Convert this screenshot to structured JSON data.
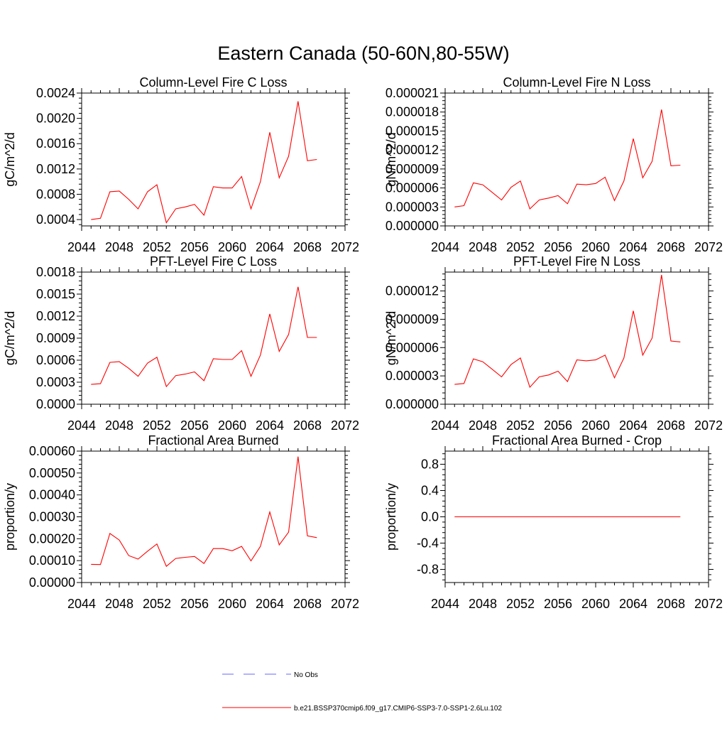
{
  "figure": {
    "title": "Eastern Canada (50-60N,80-55W)"
  },
  "legend": {
    "entries": [
      {
        "label": "No Obs",
        "color": "#6666ff",
        "style": "dashed"
      },
      {
        "label": "b.e21.BSSP370cmip6.f09_g17.CMIP6-SSP3-7.0-SSP1-2.6Lu.102",
        "color": "#ff0000",
        "style": "solid"
      }
    ]
  },
  "chart_data": [
    {
      "type": "line",
      "title": "Column-Level Fire C Loss",
      "xlabel": "",
      "ylabel": "gC/m^2/d",
      "xlim": [
        2044,
        2072
      ],
      "ylim": [
        0.0003,
        0.0024
      ],
      "xticks": [
        "2044",
        "2048",
        "2052",
        "2056",
        "2060",
        "2064",
        "2068",
        "2072"
      ],
      "xtick_values": [
        2044,
        2048,
        2052,
        2056,
        2060,
        2064,
        2068,
        2072
      ],
      "yticks": [
        "0.0004",
        "0.0008",
        "0.0012",
        "0.0016",
        "0.0020",
        "0.0024"
      ],
      "ytick_values": [
        0.0004,
        0.0008,
        0.0012,
        0.0016,
        0.002,
        0.0024
      ],
      "series": [
        {
          "color": "#ff0000",
          "x": [
            2045,
            2046,
            2047,
            2048,
            2049,
            2050,
            2051,
            2052,
            2053,
            2054,
            2055,
            2056,
            2057,
            2058,
            2059,
            2060,
            2061,
            2062,
            2063,
            2064,
            2065,
            2066,
            2067,
            2068,
            2069
          ],
          "values": [
            0.0004,
            0.00042,
            0.00084,
            0.00085,
            0.00072,
            0.00057,
            0.00084,
            0.00095,
            0.00035,
            0.00057,
            0.0006,
            0.00064,
            0.00047,
            0.00092,
            0.0009,
            0.0009,
            0.00108,
            0.00057,
            0.001,
            0.00178,
            0.00106,
            0.0014,
            0.00227,
            0.00133,
            0.00135
          ]
        }
      ]
    },
    {
      "type": "line",
      "title": "Column-Level Fire N Loss",
      "xlabel": "",
      "ylabel": "gN/m^2/d",
      "xlim": [
        2044,
        2072
      ],
      "ylim": [
        0,
        2.1e-05
      ],
      "xticks": [
        "2044",
        "2048",
        "2052",
        "2056",
        "2060",
        "2064",
        "2068",
        "2072"
      ],
      "xtick_values": [
        2044,
        2048,
        2052,
        2056,
        2060,
        2064,
        2068,
        2072
      ],
      "yticks": [
        "0.000000",
        "0.000003",
        "0.000006",
        "0.000009",
        "0.000012",
        "0.000015",
        "0.000018",
        "0.000021"
      ],
      "ytick_values": [
        0,
        3e-06,
        6e-06,
        9e-06,
        1.2e-05,
        1.5e-05,
        1.8e-05,
        2.1e-05
      ],
      "series": [
        {
          "color": "#ff0000",
          "x": [
            2045,
            2046,
            2047,
            2048,
            2049,
            2050,
            2051,
            2052,
            2053,
            2054,
            2055,
            2056,
            2057,
            2058,
            2059,
            2060,
            2061,
            2062,
            2063,
            2064,
            2065,
            2066,
            2067,
            2068,
            2069
          ],
          "values": [
            3e-06,
            3.2e-06,
            6.8e-06,
            6.5e-06,
            5.3e-06,
            4.1e-06,
            6.1e-06,
            7.1e-06,
            2.7e-06,
            4.1e-06,
            4.4e-06,
            4.8e-06,
            3.5e-06,
            6.6e-06,
            6.5e-06,
            6.7e-06,
            7.7e-06,
            4e-06,
            7.1e-06,
            1.38e-05,
            7.6e-06,
            1.02e-05,
            1.84e-05,
            9.5e-06,
            9.6e-06
          ]
        }
      ]
    },
    {
      "type": "line",
      "title": "PFT-Level Fire C Loss",
      "xlabel": "",
      "ylabel": "gC/m^2/d",
      "xlim": [
        2044,
        2072
      ],
      "ylim": [
        0,
        0.0018
      ],
      "xticks": [
        "2044",
        "2048",
        "2052",
        "2056",
        "2060",
        "2064",
        "2068",
        "2072"
      ],
      "xtick_values": [
        2044,
        2048,
        2052,
        2056,
        2060,
        2064,
        2068,
        2072
      ],
      "yticks": [
        "0.0000",
        "0.0003",
        "0.0006",
        "0.0009",
        "0.0012",
        "0.0015",
        "0.0018"
      ],
      "ytick_values": [
        0,
        0.0003,
        0.0006,
        0.0009,
        0.0012,
        0.0015,
        0.0018
      ],
      "series": [
        {
          "color": "#ff0000",
          "x": [
            2045,
            2046,
            2047,
            2048,
            2049,
            2050,
            2051,
            2052,
            2053,
            2054,
            2055,
            2056,
            2057,
            2058,
            2059,
            2060,
            2061,
            2062,
            2063,
            2064,
            2065,
            2066,
            2067,
            2068,
            2069
          ],
          "values": [
            0.00027,
            0.00028,
            0.00057,
            0.00058,
            0.00049,
            0.00038,
            0.00056,
            0.00064,
            0.00024,
            0.00039,
            0.00041,
            0.00044,
            0.00032,
            0.00062,
            0.00061,
            0.00061,
            0.00073,
            0.00038,
            0.00067,
            0.00123,
            0.00072,
            0.00095,
            0.0016,
            0.00091,
            0.00091
          ]
        }
      ]
    },
    {
      "type": "line",
      "title": "PFT-Level Fire N Loss",
      "xlabel": "",
      "ylabel": "gN/m^2/d",
      "xlim": [
        2044,
        2072
      ],
      "ylim": [
        0,
        1.4e-05
      ],
      "xticks": [
        "2044",
        "2048",
        "2052",
        "2056",
        "2060",
        "2064",
        "2068",
        "2072"
      ],
      "xtick_values": [
        2044,
        2048,
        2052,
        2056,
        2060,
        2064,
        2068,
        2072
      ],
      "yticks": [
        "0.000000",
        "0.000003",
        "0.000006",
        "0.000009",
        "0.000012"
      ],
      "ytick_values": [
        0,
        3e-06,
        6e-06,
        9e-06,
        1.2e-05
      ],
      "series": [
        {
          "color": "#ff0000",
          "x": [
            2045,
            2046,
            2047,
            2048,
            2049,
            2050,
            2051,
            2052,
            2053,
            2054,
            2055,
            2056,
            2057,
            2058,
            2059,
            2060,
            2061,
            2062,
            2063,
            2064,
            2065,
            2066,
            2067,
            2068,
            2069
          ],
          "values": [
            2.1e-06,
            2.2e-06,
            4.8e-06,
            4.5e-06,
            3.7e-06,
            2.9e-06,
            4.2e-06,
            4.9e-06,
            1.8e-06,
            2.9e-06,
            3.1e-06,
            3.5e-06,
            2.4e-06,
            4.7e-06,
            4.6e-06,
            4.7e-06,
            5.2e-06,
            2.8e-06,
            4.9e-06,
            9.9e-06,
            5.2e-06,
            7e-06,
            1.37e-05,
            6.7e-06,
            6.6e-06
          ]
        }
      ]
    },
    {
      "type": "line",
      "title": "Fractional Area Burned",
      "xlabel": "",
      "ylabel": "proportion/y",
      "xlim": [
        2044,
        2072
      ],
      "ylim": [
        0,
        0.0006
      ],
      "xticks": [
        "2044",
        "2048",
        "2052",
        "2056",
        "2060",
        "2064",
        "2068",
        "2072"
      ],
      "xtick_values": [
        2044,
        2048,
        2052,
        2056,
        2060,
        2064,
        2068,
        2072
      ],
      "yticks": [
        "0.00000",
        "0.00010",
        "0.00020",
        "0.00030",
        "0.00040",
        "0.00050",
        "0.00060"
      ],
      "ytick_values": [
        0,
        0.0001,
        0.0002,
        0.0003,
        0.0004,
        0.0005,
        0.0006
      ],
      "series": [
        {
          "color": "#ff0000",
          "x": [
            2045,
            2046,
            2047,
            2048,
            2049,
            2050,
            2051,
            2052,
            2053,
            2054,
            2055,
            2056,
            2057,
            2058,
            2059,
            2060,
            2061,
            2062,
            2063,
            2064,
            2065,
            2066,
            2067,
            2068,
            2069
          ],
          "values": [
            8.3e-05,
            8.2e-05,
            0.000224,
            0.000194,
            0.000123,
            0.000107,
            0.000143,
            0.000176,
            7.4e-05,
            0.00011,
            0.000115,
            0.000119,
            8.7e-05,
            0.000155,
            0.000155,
            0.000145,
            0.000165,
            9.9e-05,
            0.000165,
            0.000322,
            0.000172,
            0.00023,
            0.000575,
            0.000213,
            0.000205
          ]
        }
      ]
    },
    {
      "type": "line",
      "title": "Fractional Area Burned - Crop",
      "xlabel": "",
      "ylabel": "proportion/y",
      "xlim": [
        2044,
        2072
      ],
      "ylim": [
        -1.0,
        1.0
      ],
      "xticks": [
        "2044",
        "2048",
        "2052",
        "2056",
        "2060",
        "2064",
        "2068",
        "2072"
      ],
      "xtick_values": [
        2044,
        2048,
        2052,
        2056,
        2060,
        2064,
        2068,
        2072
      ],
      "yticks": [
        "-0.8",
        "-0.4",
        "0.0",
        "0.4",
        "0.8"
      ],
      "ytick_values": [
        -0.8,
        -0.4,
        0,
        0.4,
        0.8
      ],
      "series": [
        {
          "color": "#ff0000",
          "x": [
            2045,
            2046,
            2047,
            2048,
            2049,
            2050,
            2051,
            2052,
            2053,
            2054,
            2055,
            2056,
            2057,
            2058,
            2059,
            2060,
            2061,
            2062,
            2063,
            2064,
            2065,
            2066,
            2067,
            2068,
            2069
          ],
          "values": [
            0,
            0,
            0,
            0,
            0,
            0,
            0,
            0,
            0,
            0,
            0,
            0,
            0,
            0,
            0,
            0,
            0,
            0,
            0,
            0,
            0,
            0,
            0,
            0,
            0
          ]
        }
      ]
    }
  ]
}
